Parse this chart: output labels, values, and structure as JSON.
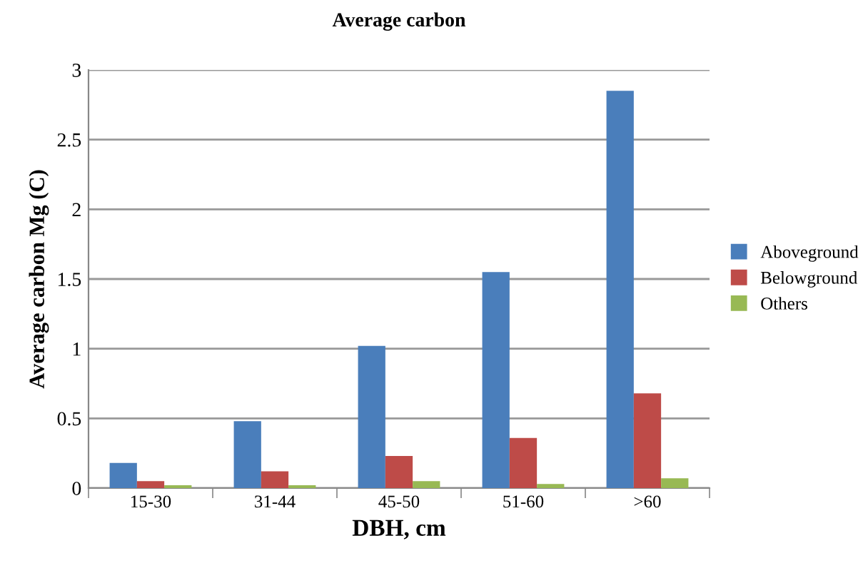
{
  "chart_data": {
    "type": "bar",
    "title": "Average carbon",
    "xlabel": "DBH, cm",
    "ylabel": "Average carbon Mg (C)",
    "categories": [
      "15-30",
      "31-44",
      "45-50",
      "51-60",
      ">60"
    ],
    "series": [
      {
        "name": "Aboveground",
        "color": "#4a7ebb",
        "values": [
          0.18,
          0.48,
          1.02,
          1.55,
          2.85
        ]
      },
      {
        "name": "Belowground",
        "color": "#be4b48",
        "values": [
          0.05,
          0.12,
          0.23,
          0.36,
          0.68
        ]
      },
      {
        "name": "Others",
        "color": "#98b954",
        "values": [
          0.02,
          0.02,
          0.05,
          0.03,
          0.07
        ]
      }
    ],
    "ylim": [
      0,
      3
    ],
    "yticks": [
      0,
      0.5,
      1,
      1.5,
      2,
      2.5,
      3
    ],
    "grid": "y",
    "legend": "right"
  }
}
